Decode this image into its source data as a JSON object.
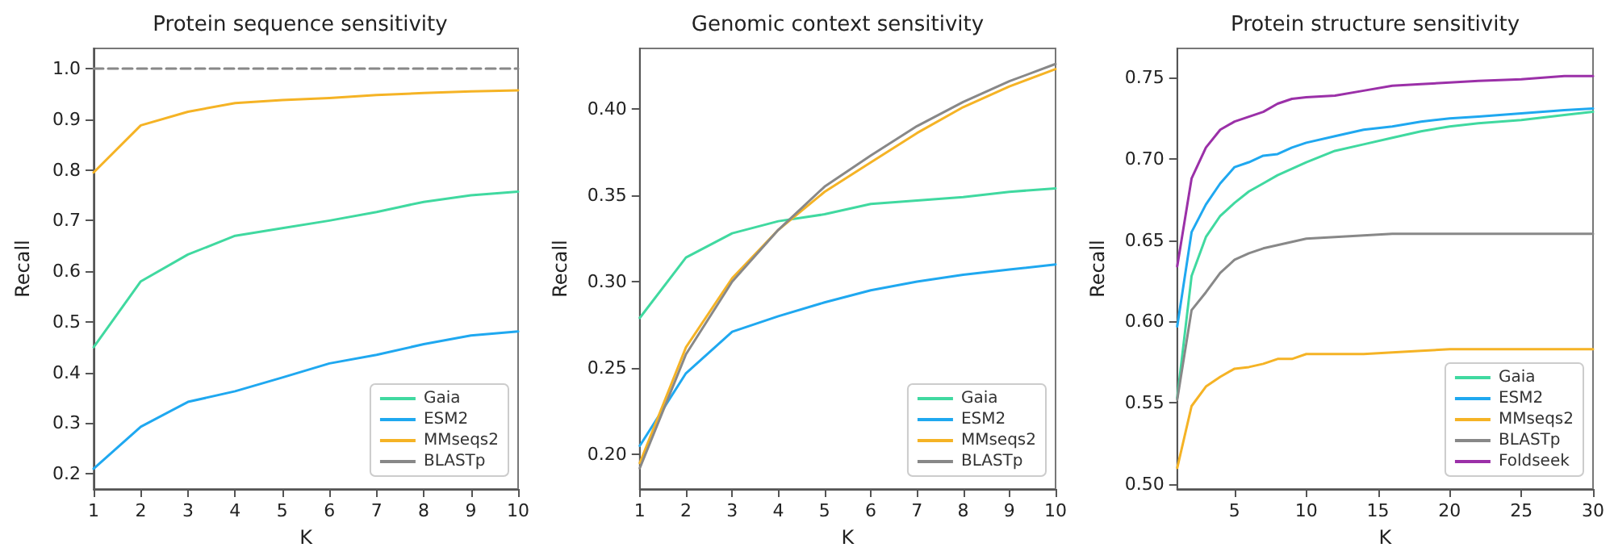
{
  "chart_data": [
    {
      "type": "line",
      "title": "Protein sequence sensitivity",
      "xlabel": "K",
      "ylabel": "Recall",
      "x": [
        1,
        2,
        3,
        4,
        5,
        6,
        7,
        8,
        9,
        10
      ],
      "series": [
        {
          "name": "Gaia",
          "color": "#40d9a0",
          "values": [
            0.45,
            0.58,
            0.633,
            0.67,
            0.685,
            0.7,
            0.717,
            0.737,
            0.75,
            0.757
          ]
        },
        {
          "name": "ESM2",
          "color": "#1fa8f0",
          "values": [
            0.21,
            0.293,
            0.342,
            0.363,
            0.39,
            0.418,
            0.435,
            0.456,
            0.473,
            0.481
          ]
        },
        {
          "name": "MMseqs2",
          "color": "#f5b325",
          "values": [
            0.795,
            0.888,
            0.915,
            0.932,
            0.938,
            0.942,
            0.948,
            0.952,
            0.955,
            0.957
          ]
        },
        {
          "name": "BLASTp",
          "color": "#888888",
          "line_style": "dashed",
          "values": [
            1.0,
            1.0,
            1.0,
            1.0,
            1.0,
            1.0,
            1.0,
            1.0,
            1.0,
            1.0
          ]
        }
      ],
      "xlim": [
        1,
        10
      ],
      "xticks": [
        1,
        2,
        3,
        4,
        5,
        6,
        7,
        8,
        9,
        10
      ],
      "ylim": [
        0.17,
        1.04
      ],
      "yticks": [
        0.2,
        0.3,
        0.4,
        0.5,
        0.6,
        0.7,
        0.8,
        0.9,
        {
          "value": 1,
          "label": "1.0"
        }
      ],
      "grid": false,
      "legend": "bottom right",
      "marker": "none",
      "line_style": "solid"
    },
    {
      "type": "line",
      "title": "Genomic context sensitivity",
      "xlabel": "K",
      "ylabel": "Recall",
      "x": [
        1,
        2,
        3,
        4,
        5,
        6,
        7,
        8,
        9,
        10
      ],
      "series": [
        {
          "name": "Gaia",
          "color": "#40d9a0",
          "values": [
            0.279,
            0.314,
            0.328,
            0.335,
            0.339,
            0.345,
            0.347,
            0.349,
            0.352,
            0.354
          ]
        },
        {
          "name": "ESM2",
          "color": "#1fa8f0",
          "values": [
            0.205,
            0.247,
            0.271,
            0.28,
            0.288,
            0.295,
            0.3,
            0.304,
            0.307,
            0.31
          ]
        },
        {
          "name": "MMseqs2",
          "color": "#f5b325",
          "values": [
            0.195,
            0.262,
            0.302,
            0.33,
            0.352,
            0.369,
            0.386,
            0.401,
            0.413,
            0.423
          ]
        },
        {
          "name": "BLASTp",
          "color": "#888888",
          "values": [
            0.192,
            0.258,
            0.3,
            0.33,
            0.355,
            0.373,
            0.39,
            0.404,
            0.416,
            0.426
          ]
        }
      ],
      "xlim": [
        1,
        10
      ],
      "xticks": [
        1,
        2,
        3,
        4,
        5,
        6,
        7,
        8,
        9,
        10
      ],
      "ylim": [
        0.18,
        0.435
      ],
      "yticks": [
        {
          "value": 0.2,
          "label": "0.20"
        },
        {
          "value": 0.25,
          "label": "0.25"
        },
        {
          "value": 0.3,
          "label": "0.30"
        },
        {
          "value": 0.35,
          "label": "0.35"
        },
        {
          "value": 0.4,
          "label": "0.40"
        }
      ],
      "grid": false,
      "legend": "bottom right",
      "marker": "none",
      "line_style": "solid"
    },
    {
      "type": "line",
      "title": "Protein structure sensitivity",
      "xlabel": "K",
      "ylabel": "Recall",
      "x": [
        1,
        2,
        3,
        4,
        5,
        6,
        7,
        8,
        9,
        10,
        12,
        14,
        16,
        18,
        20,
        22,
        25,
        28,
        30
      ],
      "series": [
        {
          "name": "Gaia",
          "color": "#40d9a0",
          "values": [
            0.553,
            0.628,
            0.652,
            0.665,
            0.673,
            0.68,
            0.685,
            0.69,
            0.694,
            0.698,
            0.705,
            0.709,
            0.713,
            0.717,
            0.72,
            0.722,
            0.724,
            0.727,
            0.729
          ]
        },
        {
          "name": "ESM2",
          "color": "#1fa8f0",
          "values": [
            0.597,
            0.655,
            0.672,
            0.685,
            0.695,
            0.698,
            0.702,
            0.703,
            0.707,
            0.71,
            0.714,
            0.718,
            0.72,
            0.723,
            0.725,
            0.726,
            0.728,
            0.73,
            0.731
          ]
        },
        {
          "name": "MMseqs2",
          "color": "#f5b325",
          "values": [
            0.51,
            0.548,
            0.56,
            0.566,
            0.571,
            0.572,
            0.574,
            0.577,
            0.577,
            0.58,
            0.58,
            0.58,
            0.581,
            0.582,
            0.583,
            0.583,
            0.583,
            0.583,
            0.583
          ]
        },
        {
          "name": "BLASTp",
          "color": "#888888",
          "values": [
            0.552,
            0.607,
            0.618,
            0.63,
            0.638,
            0.642,
            0.645,
            0.647,
            0.649,
            0.651,
            0.652,
            0.653,
            0.654,
            0.654,
            0.654,
            0.654,
            0.654,
            0.654,
            0.654
          ]
        },
        {
          "name": "Foldseek",
          "color": "#9b30a8",
          "values": [
            0.634,
            0.688,
            0.707,
            0.718,
            0.723,
            0.726,
            0.729,
            0.734,
            0.737,
            0.738,
            0.739,
            0.742,
            0.745,
            0.746,
            0.747,
            0.748,
            0.749,
            0.751,
            0.751
          ]
        }
      ],
      "xlim": [
        1,
        30
      ],
      "xticks": [
        5,
        10,
        15,
        20,
        25,
        30
      ],
      "ylim": [
        0.497,
        0.768
      ],
      "yticks": [
        {
          "value": 0.5,
          "label": "0.50"
        },
        {
          "value": 0.55,
          "label": "0.55"
        },
        {
          "value": 0.6,
          "label": "0.60"
        },
        {
          "value": 0.65,
          "label": "0.65"
        },
        {
          "value": 0.7,
          "label": "0.70"
        },
        {
          "value": 0.75,
          "label": "0.75"
        }
      ],
      "grid": false,
      "legend": "bottom right",
      "marker": "none",
      "line_style": "solid"
    }
  ]
}
